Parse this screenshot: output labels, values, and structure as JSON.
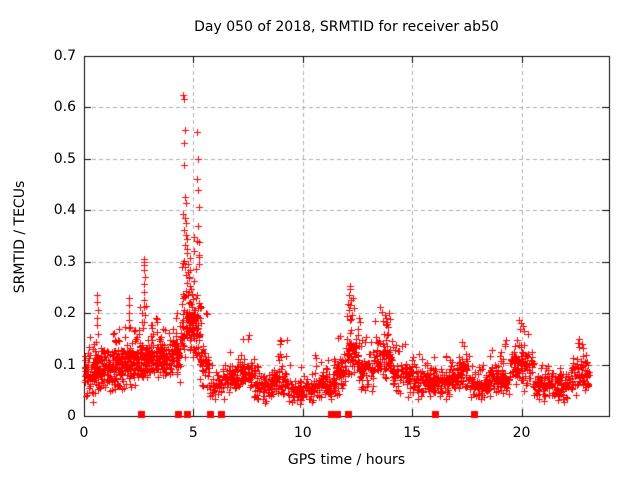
{
  "chart_data": {
    "type": "scatter",
    "title": "Day 050 of 2018, SRMTID for receiver ab50",
    "xlabel": "GPS time / hours",
    "ylabel": "SRMTID / TECUs",
    "xlim": [
      0,
      24
    ],
    "ylim": [
      0,
      0.7
    ],
    "xticks": [
      {
        "value": 0,
        "label": "0"
      },
      {
        "value": 5,
        "label": "5"
      },
      {
        "value": 10,
        "label": "10"
      },
      {
        "value": 15,
        "label": "15"
      },
      {
        "value": 20,
        "label": "20"
      }
    ],
    "yticks": [
      {
        "value": 0.0,
        "label": "0"
      },
      {
        "value": 0.1,
        "label": "0.1"
      },
      {
        "value": 0.2,
        "label": "0.2"
      },
      {
        "value": 0.3,
        "label": "0.3"
      },
      {
        "value": 0.4,
        "label": "0.4"
      },
      {
        "value": 0.5,
        "label": "0.5"
      },
      {
        "value": 0.6,
        "label": "0.6"
      },
      {
        "value": 0.7,
        "label": "0.7"
      }
    ],
    "grid": true,
    "legend": "none",
    "marker": "plus",
    "marker_color": "#ff0000",
    "grid_color": "#b0b0b0",
    "axis_color": "#000000",
    "background_color": "#ffffff",
    "scatter_summary": {
      "bins_columns": [
        "hour_start",
        "hour_end",
        "point_count",
        "y_min",
        "y_typical",
        "y_max"
      ],
      "bins": [
        [
          0.0,
          0.5,
          70,
          0.02,
          0.08,
          0.155
        ],
        [
          0.5,
          1.0,
          70,
          0.03,
          0.09,
          0.17
        ],
        [
          1.0,
          1.5,
          70,
          0.03,
          0.09,
          0.16
        ],
        [
          1.5,
          2.0,
          70,
          0.04,
          0.1,
          0.175
        ],
        [
          2.0,
          2.5,
          70,
          0.04,
          0.105,
          0.185
        ],
        [
          2.5,
          3.0,
          70,
          0.04,
          0.11,
          0.22
        ],
        [
          3.0,
          3.5,
          70,
          0.05,
          0.11,
          0.19
        ],
        [
          3.5,
          4.0,
          70,
          0.05,
          0.1,
          0.17
        ],
        [
          4.0,
          4.4,
          55,
          0.06,
          0.12,
          0.2
        ],
        [
          4.4,
          5.3,
          115,
          0.08,
          0.17,
          0.38
        ],
        [
          5.3,
          5.7,
          45,
          0.04,
          0.09,
          0.22
        ],
        [
          5.7,
          6.3,
          40,
          0.02,
          0.055,
          0.105
        ],
        [
          6.3,
          7.0,
          60,
          0.03,
          0.07,
          0.13
        ],
        [
          7.0,
          7.8,
          65,
          0.035,
          0.08,
          0.16
        ],
        [
          7.8,
          8.6,
          70,
          0.015,
          0.055,
          0.11
        ],
        [
          8.6,
          9.3,
          65,
          0.025,
          0.065,
          0.15
        ],
        [
          9.3,
          10.5,
          100,
          0.02,
          0.05,
          0.1
        ],
        [
          10.5,
          11.5,
          90,
          0.025,
          0.06,
          0.12
        ],
        [
          11.5,
          12.0,
          50,
          0.03,
          0.08,
          0.16
        ],
        [
          12.0,
          12.6,
          65,
          0.05,
          0.12,
          0.22
        ],
        [
          12.6,
          13.2,
          60,
          0.04,
          0.09,
          0.16
        ],
        [
          13.2,
          14.1,
          85,
          0.05,
          0.11,
          0.19
        ],
        [
          14.1,
          15.0,
          80,
          0.03,
          0.075,
          0.14
        ],
        [
          15.0,
          16.0,
          90,
          0.025,
          0.065,
          0.12
        ],
        [
          16.0,
          17.0,
          90,
          0.025,
          0.065,
          0.125
        ],
        [
          17.0,
          17.6,
          55,
          0.04,
          0.085,
          0.14
        ],
        [
          17.6,
          18.5,
          75,
          0.02,
          0.055,
          0.11
        ],
        [
          18.5,
          19.5,
          90,
          0.03,
          0.07,
          0.14
        ],
        [
          19.5,
          20.5,
          90,
          0.04,
          0.1,
          0.175
        ],
        [
          20.5,
          21.5,
          85,
          0.02,
          0.06,
          0.12
        ],
        [
          21.5,
          22.3,
          70,
          0.02,
          0.06,
          0.115
        ],
        [
          22.3,
          23.1,
          65,
          0.03,
          0.08,
          0.15
        ]
      ]
    },
    "peak_points": [
      [
        4.52,
        0.624
      ],
      [
        4.55,
        0.617
      ],
      [
        4.6,
        0.556
      ],
      [
        5.18,
        0.552
      ],
      [
        4.56,
        0.53
      ],
      [
        5.22,
        0.5
      ],
      [
        4.57,
        0.488
      ],
      [
        5.15,
        0.46
      ],
      [
        5.23,
        0.44
      ],
      [
        4.62,
        0.425
      ],
      [
        4.66,
        0.415
      ],
      [
        5.24,
        0.407
      ],
      [
        4.54,
        0.392
      ],
      [
        4.6,
        0.385
      ],
      [
        4.64,
        0.376
      ],
      [
        5.19,
        0.37
      ],
      [
        4.57,
        0.362
      ],
      [
        4.67,
        0.352
      ],
      [
        4.71,
        0.345
      ],
      [
        5.17,
        0.34
      ],
      [
        4.6,
        0.332
      ],
      [
        4.69,
        0.325
      ],
      [
        4.73,
        0.316
      ],
      [
        5.25,
        0.31
      ],
      [
        4.56,
        0.302
      ],
      [
        4.74,
        0.296
      ],
      [
        4.62,
        0.29
      ],
      [
        5.1,
        0.285
      ],
      [
        4.76,
        0.28
      ],
      [
        4.66,
        0.274
      ],
      [
        4.81,
        0.268
      ],
      [
        5.05,
        0.263
      ],
      [
        4.7,
        0.258
      ],
      [
        4.86,
        0.252
      ],
      [
        4.91,
        0.247
      ],
      [
        4.79,
        0.242
      ],
      [
        4.95,
        0.237
      ],
      [
        4.61,
        0.232
      ],
      [
        5.0,
        0.227
      ],
      [
        4.83,
        0.222
      ],
      [
        4.88,
        0.217
      ],
      [
        4.93,
        0.212
      ],
      [
        5.02,
        0.207
      ],
      [
        4.71,
        0.202
      ],
      [
        4.97,
        0.197
      ],
      [
        4.76,
        0.192
      ],
      [
        5.06,
        0.187
      ],
      [
        4.81,
        0.182
      ],
      [
        5.08,
        0.177
      ],
      [
        4.86,
        0.172
      ],
      [
        4.91,
        0.167
      ],
      [
        5.11,
        0.162
      ],
      [
        4.96,
        0.157
      ],
      [
        5.01,
        0.152
      ],
      [
        5.13,
        0.147
      ],
      [
        2.73,
        0.306
      ],
      [
        2.76,
        0.3
      ],
      [
        2.75,
        0.293
      ],
      [
        2.74,
        0.284
      ],
      [
        2.77,
        0.271
      ],
      [
        2.74,
        0.256
      ],
      [
        2.76,
        0.241
      ],
      [
        2.75,
        0.226
      ],
      [
        2.73,
        0.211
      ],
      [
        2.77,
        0.196
      ],
      [
        2.74,
        0.182
      ],
      [
        2.04,
        0.23
      ],
      [
        2.06,
        0.216
      ],
      [
        2.05,
        0.201
      ],
      [
        2.05,
        0.187
      ],
      [
        2.07,
        0.172
      ],
      [
        0.58,
        0.236
      ],
      [
        0.6,
        0.221
      ],
      [
        0.62,
        0.206
      ],
      [
        0.59,
        0.191
      ],
      [
        0.61,
        0.176
      ],
      [
        12.14,
        0.252
      ],
      [
        12.18,
        0.246
      ],
      [
        12.11,
        0.236
      ],
      [
        12.21,
        0.226
      ],
      [
        12.16,
        0.216
      ],
      [
        12.1,
        0.206
      ],
      [
        12.23,
        0.196
      ],
      [
        12.14,
        0.186
      ],
      [
        12.3,
        0.23
      ],
      [
        12.32,
        0.21
      ],
      [
        12.55,
        0.19
      ],
      [
        12.6,
        0.182
      ],
      [
        13.52,
        0.212
      ],
      [
        13.6,
        0.202
      ],
      [
        13.74,
        0.196
      ],
      [
        13.8,
        0.19
      ],
      [
        13.66,
        0.185
      ],
      [
        13.86,
        0.179
      ],
      [
        13.95,
        0.2
      ],
      [
        13.97,
        0.188
      ],
      [
        13.3,
        0.185
      ],
      [
        19.88,
        0.186
      ],
      [
        19.97,
        0.18
      ],
      [
        20.05,
        0.175
      ],
      [
        19.93,
        0.17
      ],
      [
        20.1,
        0.165
      ],
      [
        8.95,
        0.148
      ],
      [
        8.98,
        0.14
      ],
      [
        7.55,
        0.158
      ],
      [
        7.5,
        0.15
      ],
      [
        22.62,
        0.15
      ],
      [
        22.58,
        0.142
      ],
      [
        22.65,
        0.135
      ],
      [
        19.3,
        0.148
      ],
      [
        19.25,
        0.14
      ],
      [
        17.3,
        0.143
      ],
      [
        17.35,
        0.136
      ],
      [
        3.3,
        0.19
      ],
      [
        3.35,
        0.182
      ],
      [
        1.35,
        0.162
      ],
      [
        4.25,
        0.2
      ],
      [
        4.22,
        0.19
      ]
    ],
    "event_markers": {
      "marker": "filled-square",
      "color": "#ff0000",
      "y": 0,
      "x_hours": [
        2.6,
        4.3,
        4.7,
        5.75,
        6.25,
        11.3,
        11.55,
        12.05,
        16.05,
        17.85
      ]
    }
  }
}
